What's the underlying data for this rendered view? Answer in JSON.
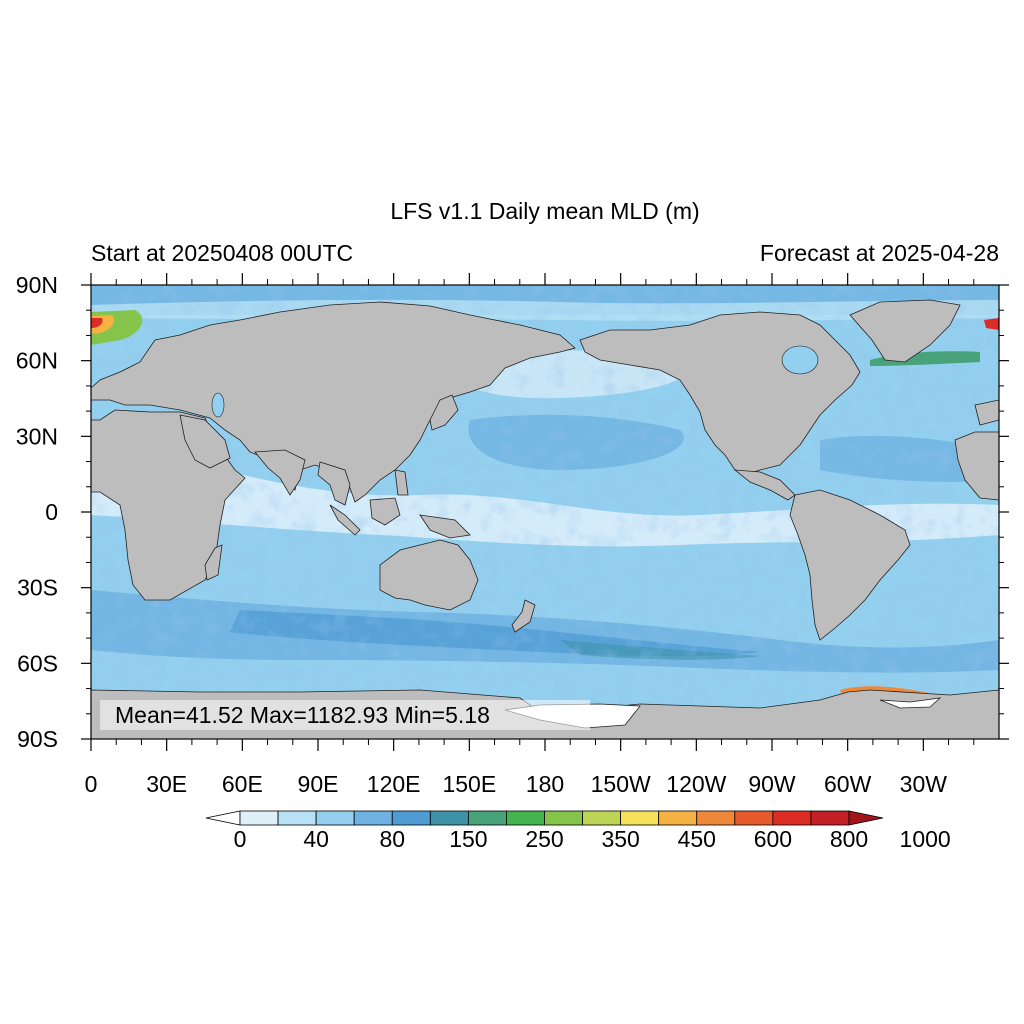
{
  "title": "LFS v1.1 Daily mean MLD (m)",
  "left_subtitle": "Start at 20250408 00UTC",
  "right_subtitle": "Forecast at 2025-04-28",
  "stats": "Mean=41.52  Max=1182.93  Min=5.18",
  "map": {
    "projection": "cylindrical-equidistant",
    "center_longitude": 180,
    "land_color": "#bdbdbd",
    "lat_tick_labels": [
      "90N",
      "60N",
      "30N",
      "0",
      "30S",
      "60S",
      "90S"
    ],
    "lon_tick_labels": [
      "0",
      "30E",
      "60E",
      "90E",
      "120E",
      "150E",
      "180",
      "150W",
      "120W",
      "90W",
      "60W",
      "30W"
    ]
  },
  "colorbar": {
    "labels": [
      "0",
      "40",
      "80",
      "150",
      "250",
      "350",
      "450",
      "600",
      "800",
      "1000"
    ],
    "colors": [
      "#ffffff",
      "#dff0fb",
      "#b8e1f5",
      "#93cfee",
      "#6fb1e1",
      "#4f9bd4",
      "#3e92a8",
      "#48a27a",
      "#43b44b",
      "#84c44a",
      "#bed457",
      "#f7e05a",
      "#f5b142",
      "#f0883a",
      "#e85a2c",
      "#dc2c24",
      "#c21f27",
      "#a0141c"
    ]
  }
}
